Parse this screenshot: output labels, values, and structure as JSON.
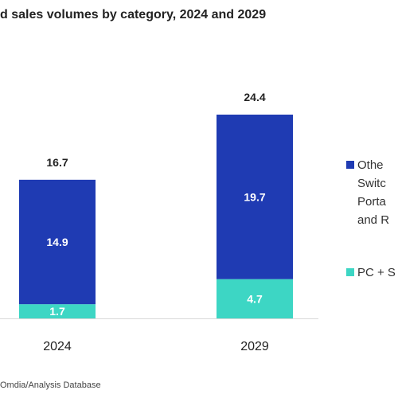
{
  "title": "d sales volumes by category, 2024 and 2029",
  "source": "Omdia/Analysis Database",
  "chart_data": {
    "type": "bar",
    "stacked": true,
    "categories": [
      "2024",
      "2029"
    ],
    "totals": [
      "16.7",
      "24.4"
    ],
    "series": [
      {
        "name": "PC + S",
        "values": [
          1.7,
          4.7
        ],
        "labels": [
          "1.7",
          "4.7"
        ],
        "color": "#3dd6c4"
      },
      {
        "name": "Other Switc Porta and R",
        "values": [
          14.9,
          19.7
        ],
        "labels": [
          "14.9",
          "19.7"
        ],
        "color": "#1f3bb3"
      }
    ],
    "legend": [
      {
        "lines": [
          "Othe",
          "Switc",
          "Porta",
          "and R"
        ],
        "color": "#1f3bb3"
      },
      {
        "lines": [
          "PC + S"
        ],
        "color": "#3dd6c4"
      }
    ],
    "legend_position": "right",
    "grid": false,
    "ylim": [
      0,
      24.4
    ]
  }
}
